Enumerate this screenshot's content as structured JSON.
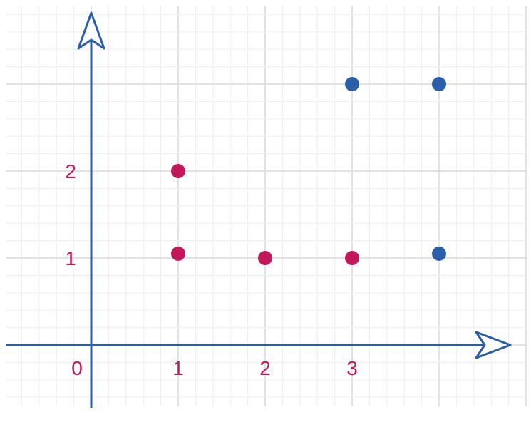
{
  "chart_data": {
    "type": "scatter",
    "title": "",
    "xlabel": "",
    "ylabel": "",
    "xlim": [
      -1,
      4.75
    ],
    "ylim": [
      -0.7,
      3.8
    ],
    "grid": true,
    "x_ticks": [
      {
        "value": 0,
        "label": "0"
      },
      {
        "value": 1,
        "label": "1"
      },
      {
        "value": 2,
        "label": "2"
      },
      {
        "value": 3,
        "label": "3"
      }
    ],
    "y_ticks": [
      {
        "value": 1,
        "label": "1"
      },
      {
        "value": 2,
        "label": "2"
      }
    ],
    "series": [
      {
        "color": "#c2185b",
        "points": [
          {
            "x": 1,
            "y": 2
          },
          {
            "x": 1,
            "y": 1.05
          },
          {
            "x": 2,
            "y": 1
          },
          {
            "x": 3,
            "y": 1
          }
        ]
      },
      {
        "color": "#2a5ea8",
        "points": [
          {
            "x": 3,
            "y": 3
          },
          {
            "x": 4,
            "y": 3
          },
          {
            "x": 4,
            "y": 1.05
          }
        ]
      }
    ],
    "axis_color": "#2a5ea8",
    "label_color": "#c2185b",
    "minor_grid_color": "#f0f0f0",
    "major_grid_color": "#e3e3e3"
  }
}
